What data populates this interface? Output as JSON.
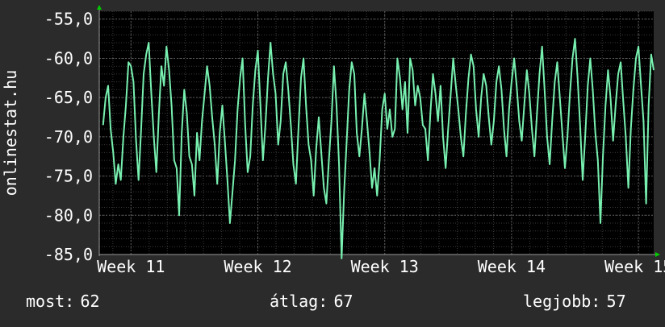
{
  "ylabel": "onlinestat.hu",
  "stats": {
    "most_label": "most:",
    "most_value": "62",
    "atlag_label": "átlag:",
    "atlag_value": "67",
    "best_label": "legjobb:",
    "best_value": "57"
  },
  "colors": {
    "background": "#2b2b2b",
    "plot_background": "#000000",
    "line": "#78f0b0",
    "grid_major": "#5a5a5a",
    "grid_minor": "#3a3a3a",
    "arrow": "#00cc00",
    "text": "#ffffff"
  },
  "chart_data": {
    "type": "line",
    "title": "",
    "xlabel": "",
    "ylabel": "onlinestat.hu",
    "ylim": [
      -85,
      -54
    ],
    "y_ticks": [
      -55,
      -60,
      -65,
      -70,
      -75,
      -80,
      -85
    ],
    "y_tick_labels": [
      "-55,0",
      "-60,0",
      "-65,0",
      "-70,0",
      "-75,0",
      "-80,0",
      "-85,0"
    ],
    "x_range": [
      10.75,
      15.12
    ],
    "x_ticks": [
      11,
      12,
      13,
      14,
      15
    ],
    "x_tick_labels": [
      "Week 11",
      "Week 12",
      "Week 13",
      "Week 14",
      "Week 15"
    ],
    "grid": true,
    "series": [
      {
        "points": [
          [
            10.78,
            -68.5
          ],
          [
            10.8,
            -65.0
          ],
          [
            10.82,
            -63.5
          ],
          [
            10.84,
            -69.0
          ],
          [
            10.86,
            -72.0
          ],
          [
            10.88,
            -76.0
          ],
          [
            10.9,
            -73.5
          ],
          [
            10.92,
            -75.5
          ],
          [
            10.94,
            -70.0
          ],
          [
            10.96,
            -66.0
          ],
          [
            10.98,
            -60.5
          ],
          [
            11.0,
            -61.0
          ],
          [
            11.02,
            -63.0
          ],
          [
            11.04,
            -70.5
          ],
          [
            11.06,
            -75.5
          ],
          [
            11.08,
            -69.0
          ],
          [
            11.1,
            -62.0
          ],
          [
            11.12,
            -59.5
          ],
          [
            11.14,
            -58.0
          ],
          [
            11.16,
            -64.5
          ],
          [
            11.18,
            -70.0
          ],
          [
            11.2,
            -74.5
          ],
          [
            11.22,
            -67.0
          ],
          [
            11.24,
            -61.0
          ],
          [
            11.26,
            -63.5
          ],
          [
            11.28,
            -58.5
          ],
          [
            11.3,
            -61.5
          ],
          [
            11.32,
            -66.0
          ],
          [
            11.34,
            -73.0
          ],
          [
            11.36,
            -74.0
          ],
          [
            11.38,
            -80.0
          ],
          [
            11.4,
            -69.5
          ],
          [
            11.42,
            -64.0
          ],
          [
            11.44,
            -67.0
          ],
          [
            11.46,
            -72.5
          ],
          [
            11.48,
            -73.5
          ],
          [
            11.5,
            -77.5
          ],
          [
            11.52,
            -69.5
          ],
          [
            11.54,
            -73.0
          ],
          [
            11.56,
            -68.0
          ],
          [
            11.58,
            -64.5
          ],
          [
            11.6,
            -61.0
          ],
          [
            11.62,
            -63.5
          ],
          [
            11.64,
            -67.5
          ],
          [
            11.66,
            -71.0
          ],
          [
            11.68,
            -76.0
          ],
          [
            11.7,
            -69.5
          ],
          [
            11.72,
            -66.0
          ],
          [
            11.74,
            -70.5
          ],
          [
            11.76,
            -75.5
          ],
          [
            11.78,
            -81.0
          ],
          [
            11.8,
            -77.0
          ],
          [
            11.82,
            -73.0
          ],
          [
            11.84,
            -66.5
          ],
          [
            11.86,
            -62.5
          ],
          [
            11.88,
            -60.0
          ],
          [
            11.9,
            -68.5
          ],
          [
            11.92,
            -74.5
          ],
          [
            11.94,
            -72.5
          ],
          [
            11.96,
            -66.0
          ],
          [
            11.98,
            -61.5
          ],
          [
            12.0,
            -59.0
          ],
          [
            12.02,
            -66.0
          ],
          [
            12.04,
            -73.0
          ],
          [
            12.06,
            -68.5
          ],
          [
            12.08,
            -62.5
          ],
          [
            12.1,
            -58.0
          ],
          [
            12.12,
            -62.0
          ],
          [
            12.14,
            -64.5
          ],
          [
            12.16,
            -71.0
          ],
          [
            12.18,
            -68.0
          ],
          [
            12.2,
            -62.0
          ],
          [
            12.22,
            -60.5
          ],
          [
            12.24,
            -64.0
          ],
          [
            12.26,
            -68.5
          ],
          [
            12.28,
            -73.5
          ],
          [
            12.3,
            -76.0
          ],
          [
            12.32,
            -69.0
          ],
          [
            12.34,
            -62.5
          ],
          [
            12.36,
            -60.0
          ],
          [
            12.38,
            -66.0
          ],
          [
            12.4,
            -71.0
          ],
          [
            12.42,
            -73.0
          ],
          [
            12.44,
            -77.5
          ],
          [
            12.46,
            -71.5
          ],
          [
            12.48,
            -67.5
          ],
          [
            12.5,
            -72.0
          ],
          [
            12.52,
            -76.5
          ],
          [
            12.54,
            -78.5
          ],
          [
            12.56,
            -73.0
          ],
          [
            12.58,
            -68.0
          ],
          [
            12.6,
            -61.0
          ],
          [
            12.62,
            -66.0
          ],
          [
            12.64,
            -73.5
          ],
          [
            12.66,
            -85.5
          ],
          [
            12.68,
            -77.0
          ],
          [
            12.7,
            -70.5
          ],
          [
            12.72,
            -64.0
          ],
          [
            12.74,
            -60.5
          ],
          [
            12.76,
            -62.0
          ],
          [
            12.78,
            -69.5
          ],
          [
            12.8,
            -72.5
          ],
          [
            12.82,
            -69.0
          ],
          [
            12.84,
            -64.5
          ],
          [
            12.86,
            -68.0
          ],
          [
            12.88,
            -72.0
          ],
          [
            12.9,
            -76.5
          ],
          [
            12.92,
            -74.0
          ],
          [
            12.94,
            -77.5
          ],
          [
            12.96,
            -73.0
          ],
          [
            12.98,
            -66.5
          ],
          [
            13.0,
            -64.5
          ],
          [
            13.02,
            -69.0
          ],
          [
            13.04,
            -66.5
          ],
          [
            13.06,
            -70.0
          ],
          [
            13.08,
            -69.0
          ],
          [
            13.1,
            -60.0
          ],
          [
            13.12,
            -62.5
          ],
          [
            13.14,
            -66.5
          ],
          [
            13.16,
            -63.0
          ],
          [
            13.18,
            -69.5
          ],
          [
            13.2,
            -60.0
          ],
          [
            13.22,
            -61.5
          ],
          [
            13.24,
            -66.0
          ],
          [
            13.26,
            -63.5
          ],
          [
            13.28,
            -65.0
          ],
          [
            13.3,
            -68.5
          ],
          [
            13.32,
            -69.0
          ],
          [
            13.34,
            -73.0
          ],
          [
            13.36,
            -67.0
          ],
          [
            13.38,
            -62.0
          ],
          [
            13.4,
            -64.5
          ],
          [
            13.42,
            -68.0
          ],
          [
            13.44,
            -63.5
          ],
          [
            13.46,
            -70.0
          ],
          [
            13.48,
            -74.0
          ],
          [
            13.5,
            -69.0
          ],
          [
            13.52,
            -64.5
          ],
          [
            13.54,
            -60.0
          ],
          [
            13.56,
            -63.5
          ],
          [
            13.58,
            -66.5
          ],
          [
            13.6,
            -70.0
          ],
          [
            13.62,
            -72.5
          ],
          [
            13.64,
            -67.0
          ],
          [
            13.66,
            -62.5
          ],
          [
            13.68,
            -59.5
          ],
          [
            13.7,
            -61.0
          ],
          [
            13.72,
            -66.5
          ],
          [
            13.74,
            -70.0
          ],
          [
            13.76,
            -65.0
          ],
          [
            13.78,
            -62.0
          ],
          [
            13.8,
            -63.5
          ],
          [
            13.82,
            -67.5
          ],
          [
            13.84,
            -71.0
          ],
          [
            13.86,
            -68.0
          ],
          [
            13.88,
            -63.0
          ],
          [
            13.9,
            -61.0
          ],
          [
            13.92,
            -64.0
          ],
          [
            13.94,
            -69.0
          ],
          [
            13.96,
            -72.5
          ],
          [
            13.98,
            -66.5
          ],
          [
            14.0,
            -63.0
          ],
          [
            14.02,
            -60.0
          ],
          [
            14.04,
            -63.5
          ],
          [
            14.06,
            -68.0
          ],
          [
            14.08,
            -70.5
          ],
          [
            14.1,
            -66.0
          ],
          [
            14.12,
            -61.5
          ],
          [
            14.14,
            -64.5
          ],
          [
            14.16,
            -69.0
          ],
          [
            14.18,
            -72.5
          ],
          [
            14.2,
            -67.0
          ],
          [
            14.22,
            -62.0
          ],
          [
            14.24,
            -58.5
          ],
          [
            14.26,
            -64.0
          ],
          [
            14.28,
            -70.0
          ],
          [
            14.3,
            -73.5
          ],
          [
            14.32,
            -68.0
          ],
          [
            14.34,
            -63.0
          ],
          [
            14.36,
            -60.5
          ],
          [
            14.38,
            -65.0
          ],
          [
            14.4,
            -69.5
          ],
          [
            14.42,
            -74.0
          ],
          [
            14.44,
            -70.0
          ],
          [
            14.46,
            -64.5
          ],
          [
            14.48,
            -60.0
          ],
          [
            14.5,
            -57.5
          ],
          [
            14.52,
            -62.5
          ],
          [
            14.54,
            -68.5
          ],
          [
            14.56,
            -75.5
          ],
          [
            14.58,
            -70.0
          ],
          [
            14.6,
            -63.5
          ],
          [
            14.62,
            -60.0
          ],
          [
            14.64,
            -64.0
          ],
          [
            14.66,
            -69.5
          ],
          [
            14.68,
            -73.0
          ],
          [
            14.7,
            -81.0
          ],
          [
            14.72,
            -72.5
          ],
          [
            14.74,
            -66.0
          ],
          [
            14.76,
            -61.5
          ],
          [
            14.78,
            -65.0
          ],
          [
            14.8,
            -70.5
          ],
          [
            14.82,
            -66.0
          ],
          [
            14.84,
            -62.0
          ],
          [
            14.86,
            -60.5
          ],
          [
            14.88,
            -65.5
          ],
          [
            14.9,
            -70.0
          ],
          [
            14.92,
            -76.5
          ],
          [
            14.94,
            -69.0
          ],
          [
            14.96,
            -64.0
          ],
          [
            14.98,
            -60.0
          ],
          [
            15.0,
            -58.5
          ],
          [
            15.02,
            -63.5
          ],
          [
            15.04,
            -68.0
          ],
          [
            15.06,
            -78.5
          ],
          [
            15.08,
            -66.0
          ],
          [
            15.1,
            -59.5
          ],
          [
            15.12,
            -61.5
          ]
        ]
      }
    ]
  }
}
